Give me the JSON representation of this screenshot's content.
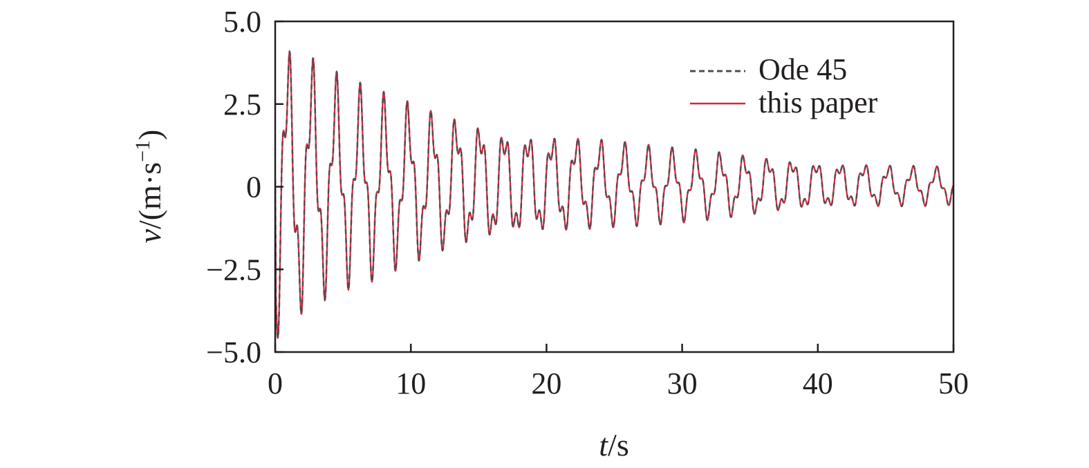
{
  "chart_data": {
    "type": "line",
    "xlabel": {
      "var": "t",
      "unit": "/s"
    },
    "ylabel": {
      "var": "v",
      "unit_prefix": "/(m·s",
      "unit_sup": "−1",
      "unit_suffix": ")"
    },
    "xlim": [
      0,
      50
    ],
    "ylim": [
      -5.0,
      5.0
    ],
    "xticks": [
      0,
      10,
      20,
      30,
      40,
      50
    ],
    "xtick_labels": [
      "0",
      "10",
      "20",
      "30",
      "40",
      "50"
    ],
    "yticks": [
      5.0,
      2.5,
      0,
      -2.5,
      -5.0
    ],
    "ytick_labels": [
      "5.0",
      "2.5",
      "0",
      "−2.5",
      "−5.0"
    ],
    "grid": false,
    "legend": {
      "position": "top-right"
    },
    "series": [
      {
        "name": "Ode 45",
        "style": "dashed",
        "color": "#4d4d4f"
      },
      {
        "name": "this paper",
        "style": "solid",
        "color": "#d7263d"
      }
    ],
    "signal": {
      "description_visible": "decaying oscillation with beating",
      "x_step": 0.01,
      "peaks": [
        {
          "t": 1.0,
          "v": 3.9
        },
        {
          "t": 1.6,
          "v": 4.0
        },
        {
          "t": 3.3,
          "v": 3.4
        },
        {
          "t": 5.1,
          "v": 3.0
        },
        {
          "t": 6.9,
          "v": 2.7
        },
        {
          "t": 8.6,
          "v": 2.5
        },
        {
          "t": 10.4,
          "v": 2.3
        },
        {
          "t": 12.2,
          "v": 2.1
        },
        {
          "t": 14.0,
          "v": 2.0
        },
        {
          "t": 15.8,
          "v": 1.8
        },
        {
          "t": 17.6,
          "v": 1.7
        },
        {
          "t": 21.1,
          "v": 1.5
        },
        {
          "t": 24.7,
          "v": 1.3
        },
        {
          "t": 28.2,
          "v": 1.1
        },
        {
          "t": 31.8,
          "v": 1.0
        },
        {
          "t": 35.3,
          "v": 0.9
        },
        {
          "t": 38.8,
          "v": 0.8
        },
        {
          "t": 42.4,
          "v": 0.7
        },
        {
          "t": 45.9,
          "v": 0.6
        },
        {
          "t": 49.5,
          "v": 0.55
        }
      ],
      "troughs": [
        {
          "t": 0.3,
          "v": -4.5
        },
        {
          "t": 0.7,
          "v": -4.0
        },
        {
          "t": 2.2,
          "v": -3.5
        },
        {
          "t": 4.0,
          "v": -3.0
        },
        {
          "t": 5.8,
          "v": -2.7
        },
        {
          "t": 7.6,
          "v": -2.5
        },
        {
          "t": 9.4,
          "v": -2.2
        },
        {
          "t": 11.2,
          "v": -2.0
        },
        {
          "t": 13.0,
          "v": -1.8
        },
        {
          "t": 14.8,
          "v": -1.7
        },
        {
          "t": 18.3,
          "v": -1.5
        },
        {
          "t": 21.9,
          "v": -1.3
        },
        {
          "t": 25.4,
          "v": -1.1
        },
        {
          "t": 28.9,
          "v": -1.0
        },
        {
          "t": 32.5,
          "v": -0.9
        },
        {
          "t": 36.0,
          "v": -0.8
        },
        {
          "t": 39.6,
          "v": -0.7
        },
        {
          "t": 43.1,
          "v": -0.6
        },
        {
          "t": 46.6,
          "v": -0.55
        },
        {
          "t": 49.6,
          "v": -0.5
        }
      ]
    }
  }
}
